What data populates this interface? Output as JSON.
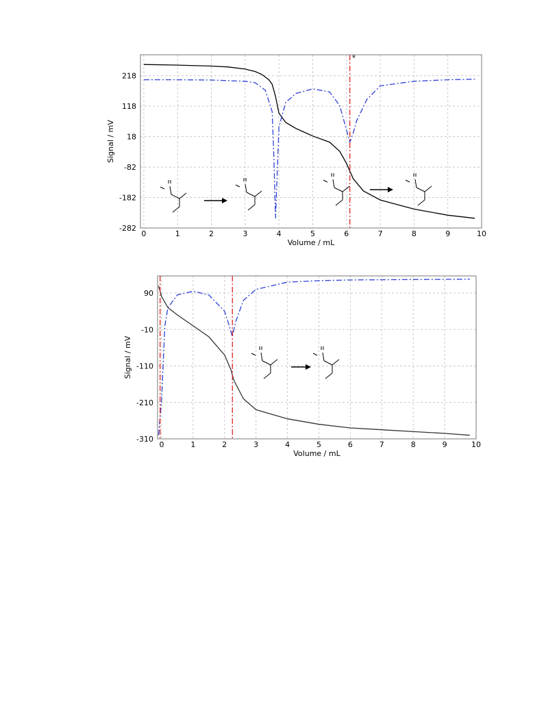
{
  "chart_data": [
    {
      "type": "line",
      "x_label": "Volume / mL",
      "y_label": "Signal / mV",
      "marker_label": "*",
      "xlim": [
        -0.1,
        10
      ],
      "ylim": [
        -282,
        287
      ],
      "xticks": [
        0,
        1,
        2,
        3,
        4,
        5,
        6,
        7,
        8,
        9,
        10
      ],
      "yticks": [
        218,
        118,
        18,
        -82,
        -182,
        -282
      ],
      "grid": true,
      "vlines": [
        6.1
      ],
      "vline_color": "#e02020",
      "series": [
        {
          "color": "#000000",
          "style": "solid",
          "x": [
            0,
            1,
            2,
            2.5,
            3,
            3.3,
            3.5,
            3.7,
            3.8,
            3.9,
            4.0,
            4.2,
            4.5,
            4.7,
            5,
            5.5,
            5.8,
            6,
            6.2,
            6.5,
            7,
            7.5,
            8,
            9,
            9.8
          ],
          "values": [
            255,
            253,
            250,
            247,
            240,
            232,
            222,
            205,
            190,
            150,
            95,
            65,
            45,
            35,
            20,
            0,
            -30,
            -70,
            -120,
            -160,
            -190,
            -205,
            -220,
            -240,
            -250
          ]
        },
        {
          "color": "#2b3fd6",
          "style": "dashdot",
          "x": [
            0,
            1,
            2,
            3,
            3.3,
            3.6,
            3.8,
            3.85,
            3.9,
            3.95,
            4.0,
            4.2,
            4.5,
            5,
            5.5,
            5.8,
            6,
            6.1,
            6.2,
            6.3,
            6.6,
            7,
            8,
            9,
            9.8
          ],
          "values": [
            205,
            205,
            204,
            200,
            195,
            170,
            100,
            -50,
            -250,
            -100,
            50,
            130,
            160,
            175,
            165,
            120,
            40,
            0,
            30,
            70,
            140,
            185,
            200,
            205,
            207
          ]
        }
      ]
    },
    {
      "type": "line",
      "x_label": "Volume / mL",
      "y_label": "Signal / mV",
      "xlim": [
        -0.13,
        10
      ],
      "ylim": [
        -310,
        137
      ],
      "xticks": [
        0,
        1,
        2,
        3,
        4,
        5,
        6,
        7,
        8,
        9,
        10
      ],
      "yticks": [
        90,
        -10,
        -110,
        -210,
        -310
      ],
      "grid": true,
      "vlines": [
        -0.05,
        2.25
      ],
      "vline_color": "#e02020",
      "series": [
        {
          "color": "#333333",
          "style": "solid",
          "x": [
            -0.1,
            0,
            0.2,
            0.5,
            1,
            1.5,
            2,
            2.2,
            2.3,
            2.6,
            3,
            4,
            5,
            6,
            7,
            8,
            9,
            9.8
          ],
          "values": [
            110,
            80,
            50,
            30,
            0,
            -30,
            -80,
            -120,
            -150,
            -200,
            -230,
            -255,
            -270,
            -280,
            -285,
            -290,
            -295,
            -300
          ]
        },
        {
          "color": "#2b3fd6",
          "style": "dashdot",
          "x": [
            -0.1,
            0,
            0.1,
            0.2,
            0.5,
            1,
            1.5,
            2,
            2.15,
            2.25,
            2.35,
            2.6,
            3,
            4,
            5,
            6,
            8,
            9.8
          ],
          "values": [
            -300,
            -200,
            0,
            50,
            85,
            95,
            85,
            40,
            0,
            -30,
            10,
            70,
            100,
            120,
            124,
            126,
            127,
            128
          ]
        }
      ]
    }
  ]
}
